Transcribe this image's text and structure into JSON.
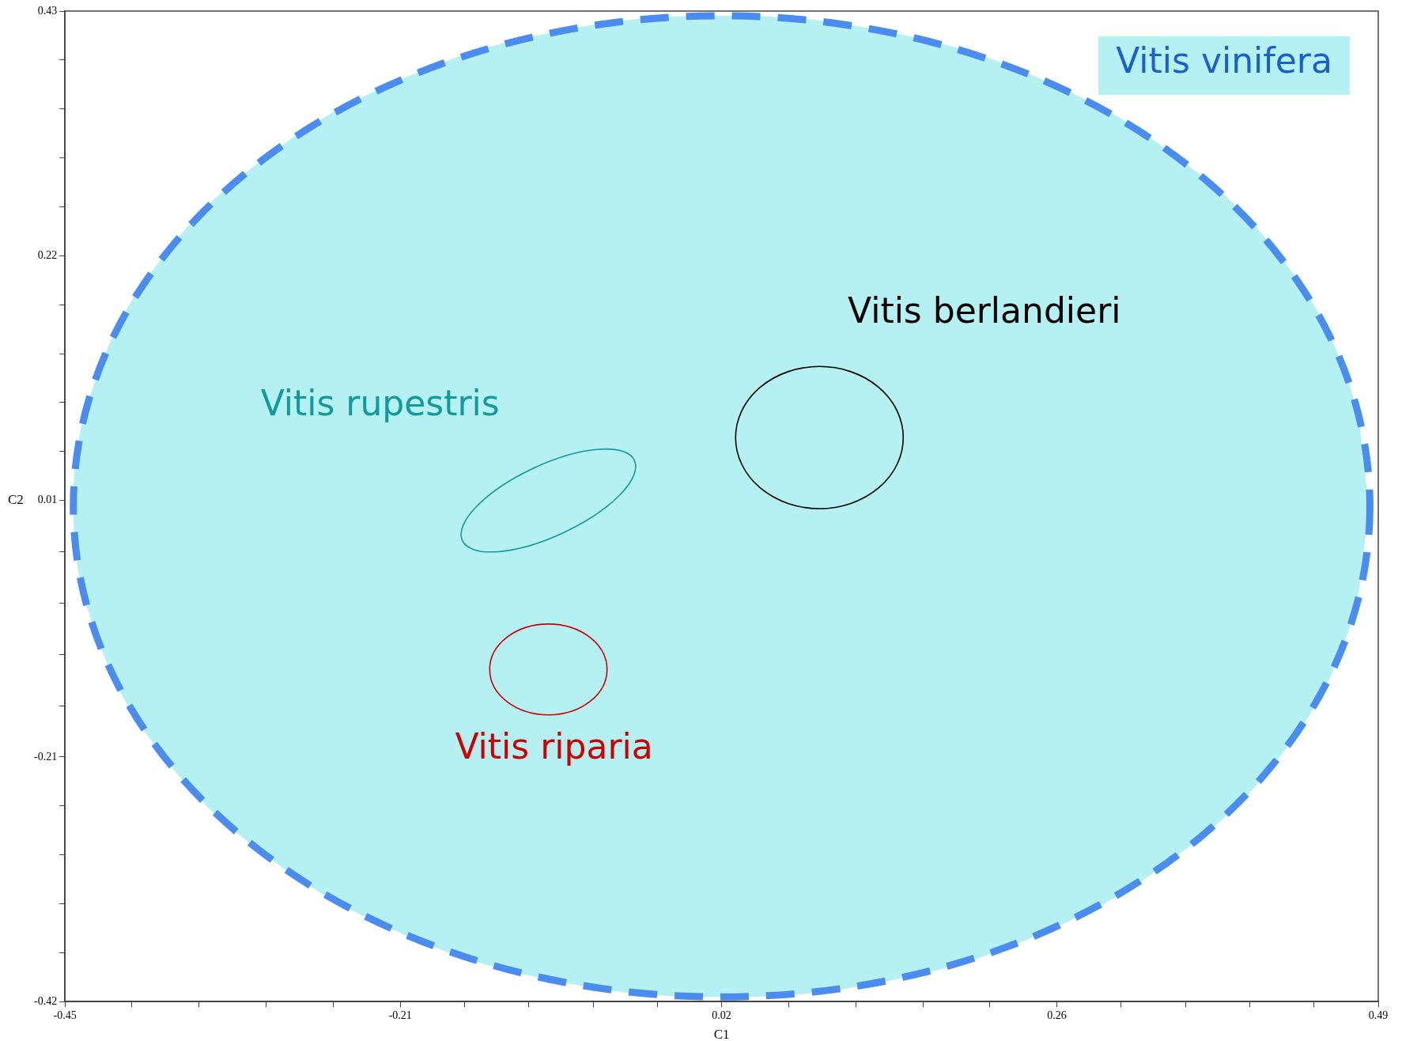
{
  "chart_data": {
    "type": "area",
    "series": [
      {
        "color": "#b5f0f2",
        "x": [
          0.484,
          0.468,
          0.422,
          0.348,
          0.252,
          0.14,
          0.02,
          -0.1,
          -0.212,
          -0.308,
          -0.382,
          -0.428,
          -0.444,
          -0.428,
          -0.382,
          -0.308,
          -0.212,
          -0.1,
          0.02,
          0.14,
          0.252,
          0.348,
          0.422,
          0.468,
          0.484
        ],
        "values": [
          0.005,
          0.114,
          0.216,
          0.303,
          0.37,
          0.412,
          0.426,
          0.412,
          0.37,
          0.303,
          0.216,
          0.114,
          0.005,
          -0.104,
          -0.206,
          -0.293,
          -0.36,
          -0.402,
          -0.416,
          -0.402,
          -0.36,
          -0.293,
          -0.206,
          -0.104,
          0.005
        ]
      }
    ],
    "xlabel": "C1",
    "ylabel": "C2",
    "xlim": [
      -0.45,
      0.49
    ],
    "xticks": [
      -0.45,
      {
        "value": -0.402,
        "label": null
      },
      {
        "value": -0.354,
        "label": null
      },
      {
        "value": -0.306,
        "label": null
      },
      {
        "value": -0.258,
        "label": null
      },
      -0.21,
      {
        "value": -0.164,
        "label": null
      },
      {
        "value": -0.118,
        "label": null
      },
      {
        "value": -0.072,
        "label": null
      },
      {
        "value": -0.026,
        "label": null
      },
      0.02,
      {
        "value": 0.068,
        "label": null
      },
      {
        "value": 0.116,
        "label": null
      },
      {
        "value": 0.164,
        "label": null
      },
      {
        "value": 0.212,
        "label": null
      },
      0.26,
      {
        "value": 0.306,
        "label": null
      },
      {
        "value": 0.352,
        "label": null
      },
      {
        "value": 0.398,
        "label": null
      },
      {
        "value": 0.444,
        "label": null
      },
      0.49
    ],
    "ylim": [
      -0.42,
      0.43
    ],
    "yticks": [
      -0.42,
      {
        "value": -0.378,
        "label": null
      },
      {
        "value": -0.336,
        "label": null
      },
      {
        "value": -0.294,
        "label": null
      },
      {
        "value": -0.252,
        "label": null
      },
      -0.21,
      {
        "value": -0.166,
        "label": null
      },
      {
        "value": -0.122,
        "label": null
      },
      {
        "value": -0.078,
        "label": null
      },
      {
        "value": -0.034,
        "label": null
      },
      0.01,
      {
        "value": 0.052,
        "label": null
      },
      {
        "value": 0.094,
        "label": null
      },
      {
        "value": 0.136,
        "label": null
      },
      {
        "value": 0.178,
        "label": null
      },
      0.22,
      {
        "value": 0.262,
        "label": null
      },
      {
        "value": 0.304,
        "label": null
      },
      {
        "value": 0.346,
        "label": null
      },
      {
        "value": 0.388,
        "label": null
      },
      0.43
    ],
    "grid": false,
    "legend": false,
    "annotations": [
      "Vitis vinifera",
      "Vitis berlandieri",
      "Vitis rupestris",
      "Vitis riparia"
    ]
  }
}
